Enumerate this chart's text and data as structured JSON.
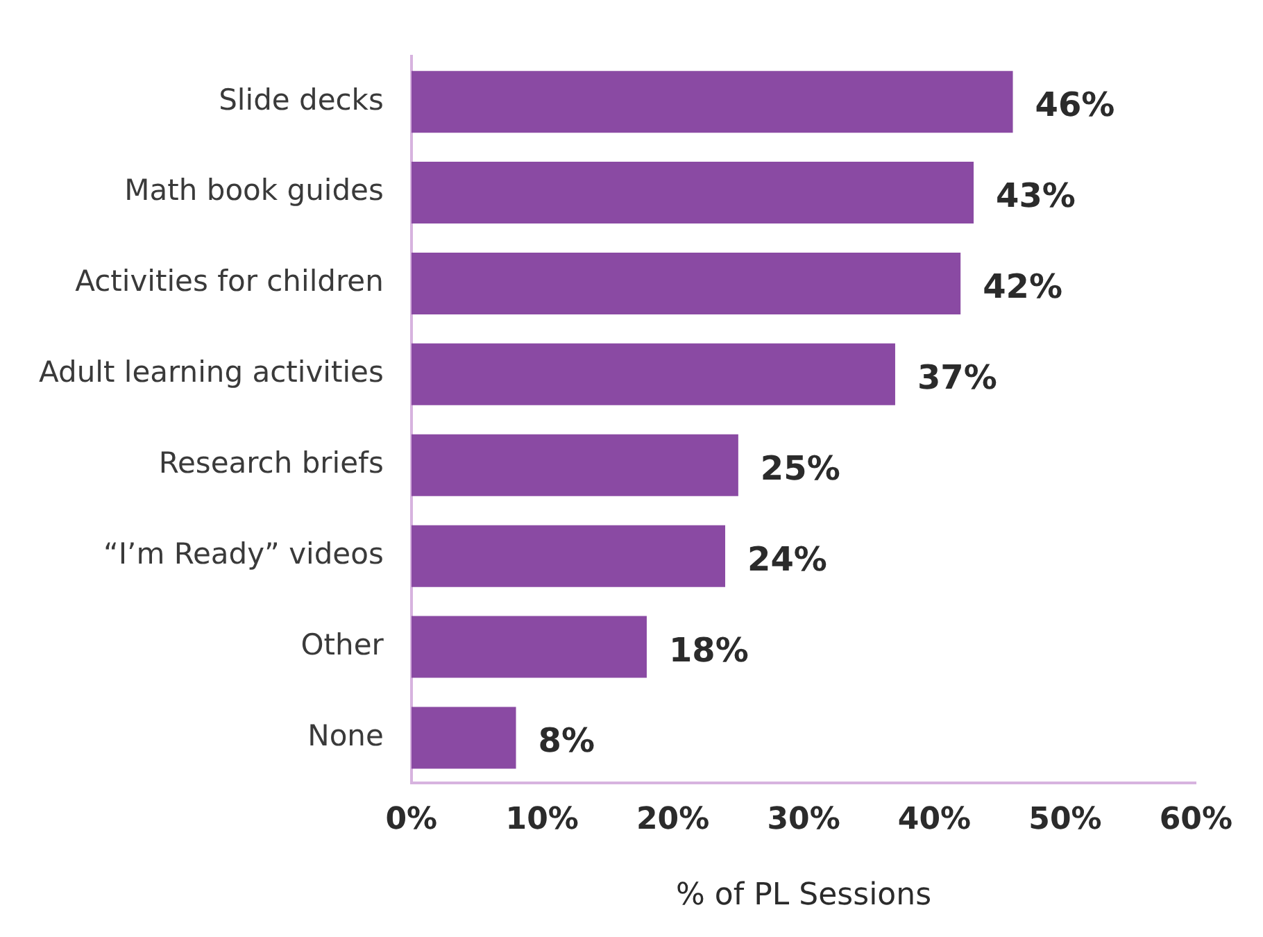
{
  "chart_data": {
    "type": "bar",
    "orientation": "horizontal",
    "xlabel": "% of PL Sessions",
    "categories": [
      "Slide decks",
      "Math book guides",
      "Activities for children",
      "Adult learning activities",
      "Research briefs",
      "“I’m Ready” videos",
      "Other",
      "None"
    ],
    "values": [
      46,
      43,
      42,
      37,
      25,
      24,
      18,
      8
    ],
    "value_labels": [
      "46%",
      "43%",
      "42%",
      "37%",
      "25%",
      "24%",
      "18%",
      "8%"
    ],
    "color": "#8a4aa3",
    "xlim": [
      0,
      60
    ],
    "xticks": [
      {
        "value": 0,
        "label": "0%"
      },
      {
        "value": 10,
        "label": "10%"
      },
      {
        "value": 20,
        "label": "20%"
      },
      {
        "value": 30,
        "label": "30%"
      },
      {
        "value": 40,
        "label": "40%"
      },
      {
        "value": 50,
        "label": "50%"
      },
      {
        "value": 60,
        "label": "60%"
      }
    ],
    "grid": false,
    "legend": false
  }
}
